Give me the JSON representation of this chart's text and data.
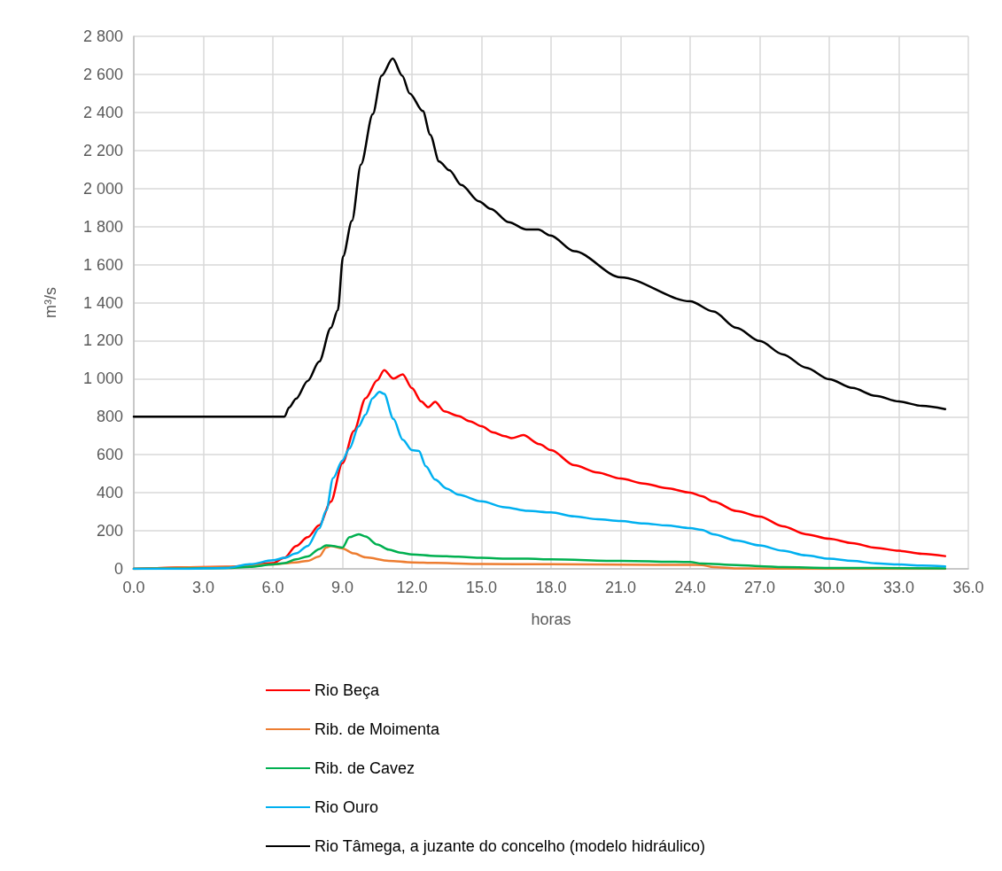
{
  "chart_data": {
    "type": "line",
    "xlabel": "horas",
    "ylabel": "m³/s",
    "xlim": [
      0,
      36
    ],
    "xticks": [
      {
        "value": 0,
        "label": "0.0"
      },
      {
        "value": 3,
        "label": "3.0"
      },
      {
        "value": 6,
        "label": "6.0"
      },
      {
        "value": 9,
        "label": "9.0"
      },
      {
        "value": 12,
        "label": "12.0"
      },
      {
        "value": 15,
        "label": "15.0"
      },
      {
        "value": 18,
        "label": "18.0"
      },
      {
        "value": 21,
        "label": "21.0"
      },
      {
        "value": 24,
        "label": "24.0"
      },
      {
        "value": 27,
        "label": "27.0"
      },
      {
        "value": 30,
        "label": "30.0"
      },
      {
        "value": 33,
        "label": "33.0"
      },
      {
        "value": 36,
        "label": "36.0"
      }
    ],
    "ylim": [
      0,
      2800
    ],
    "yticks": [
      0,
      200,
      400,
      600,
      800,
      {
        "value": 1000,
        "label": "1 000"
      },
      {
        "value": 1200,
        "label": "1 200"
      },
      {
        "value": 1400,
        "label": "1 400"
      },
      {
        "value": 1600,
        "label": "1 600"
      },
      {
        "value": 1800,
        "label": "1 800"
      },
      {
        "value": 2000,
        "label": "2 000"
      },
      {
        "value": 2200,
        "label": "2 200"
      },
      {
        "value": 2400,
        "label": "2 400"
      },
      {
        "value": 2600,
        "label": "2 600"
      },
      {
        "value": 2800,
        "label": "2 800"
      }
    ],
    "grid": true,
    "legend": "bottom",
    "marker": "none",
    "line_style": "solid",
    "series": [
      {
        "name": "Rio Beça",
        "color": "#ff0000",
        "x": [
          0,
          4,
          6,
          6.5,
          7,
          7.5,
          8,
          8.5,
          9,
          9.5,
          10,
          10.5,
          10.8,
          11.2,
          11.6,
          12,
          12.4,
          12.7,
          13,
          13.4,
          14,
          14.5,
          15,
          15.5,
          16,
          16.3,
          16.8,
          17.5,
          18,
          19,
          20,
          21,
          22,
          23,
          24,
          24.5,
          25,
          26,
          27,
          28,
          29,
          30,
          31,
          32,
          33,
          34,
          35
        ],
        "values": [
          0,
          10,
          30,
          58,
          120,
          166,
          229,
          353,
          555,
          726,
          897,
          991,
          1045,
          1000,
          1023,
          950,
          880,
          850,
          878,
          828,
          804,
          776,
          750,
          718,
          698,
          687,
          703,
          656,
          624,
          545,
          507,
          475,
          449,
          424,
          401,
          382,
          354,
          304,
          275,
          224,
          182,
          158,
          135,
          111,
          95,
          79,
          67
        ]
      },
      {
        "name": "Rib. de Moimenta",
        "color": "#ed7d31",
        "x": [
          0,
          4,
          6,
          7,
          7.5,
          8,
          8.3,
          8.5,
          9,
          9.5,
          10,
          11,
          12,
          13,
          15,
          18,
          21,
          24,
          24.5,
          25,
          26,
          30,
          35
        ],
        "values": [
          0,
          10,
          23,
          34,
          42,
          65,
          112,
          120,
          107,
          81,
          60,
          42,
          34,
          31,
          26,
          24,
          22,
          21,
          20,
          9,
          2,
          0,
          0
        ]
      },
      {
        "name": "Rib. de Cavez",
        "color": "#00b050",
        "x": [
          0,
          2,
          4,
          5,
          6,
          6.5,
          7,
          7.5,
          8,
          8.3,
          8.6,
          9,
          9.3,
          9.7,
          10,
          10.5,
          11,
          11.5,
          12,
          13,
          14,
          15,
          16,
          17,
          18,
          21,
          24,
          24.5,
          26,
          27,
          28,
          30,
          35
        ],
        "values": [
          0,
          1,
          5,
          10,
          23,
          30,
          50,
          65,
          104,
          124,
          120,
          112,
          166,
          182,
          170,
          128,
          101,
          85,
          76,
          68,
          64,
          58,
          54,
          53,
          50,
          42,
          36,
          28,
          20,
          14,
          9,
          5,
          2
        ]
      },
      {
        "name": "Rio Ouro",
        "color": "#00b0f0",
        "x": [
          0,
          2,
          4,
          5,
          6,
          6.5,
          7,
          7.5,
          8,
          8.3,
          8.6,
          9,
          9.3,
          9.7,
          10,
          10.3,
          10.6,
          10.8,
          11.2,
          11.6,
          12,
          12.3,
          12.6,
          13,
          13.5,
          14,
          15,
          16,
          17,
          18,
          19,
          20,
          21,
          22,
          23,
          24,
          24.5,
          25,
          26,
          27,
          28,
          29,
          30,
          31,
          32,
          33,
          34,
          35
        ],
        "values": [
          0,
          0,
          5,
          24,
          45,
          58,
          81,
          120,
          213,
          306,
          477,
          570,
          632,
          749,
          811,
          897,
          931,
          920,
          788,
          679,
          624,
          620,
          539,
          469,
          422,
          390,
          355,
          324,
          305,
          297,
          276,
          261,
          251,
          239,
          228,
          214,
          205,
          182,
          149,
          123,
          95,
          71,
          53,
          42,
          29,
          23,
          17,
          13
        ]
      },
      {
        "name": "Rio Tâmega, a juzante do concelho (modelo hidráulico)",
        "color": "#000000",
        "x": [
          0,
          3,
          6,
          6.5,
          6.7,
          7,
          7.5,
          8,
          8.5,
          8.8,
          9.03,
          9.41,
          9.8,
          10.31,
          10.69,
          11.17,
          11.58,
          11.9,
          12.47,
          12.79,
          13.17,
          13.62,
          14.13,
          14.89,
          15.4,
          16.17,
          16.94,
          17.45,
          17.97,
          19,
          21,
          24,
          25,
          26,
          27,
          28,
          29,
          30,
          31,
          32,
          33,
          34,
          35
        ],
        "values": [
          800,
          800,
          800,
          800,
          848,
          895,
          988,
          1090,
          1267,
          1360,
          1644,
          1830,
          2126,
          2391,
          2593,
          2683,
          2593,
          2500,
          2407,
          2282,
          2142,
          2095,
          2018,
          1932,
          1893,
          1823,
          1784,
          1784,
          1753,
          1670,
          1533,
          1407,
          1353,
          1267,
          1198,
          1128,
          1058,
          997,
          951,
          910,
          880,
          857,
          840
        ]
      }
    ]
  }
}
